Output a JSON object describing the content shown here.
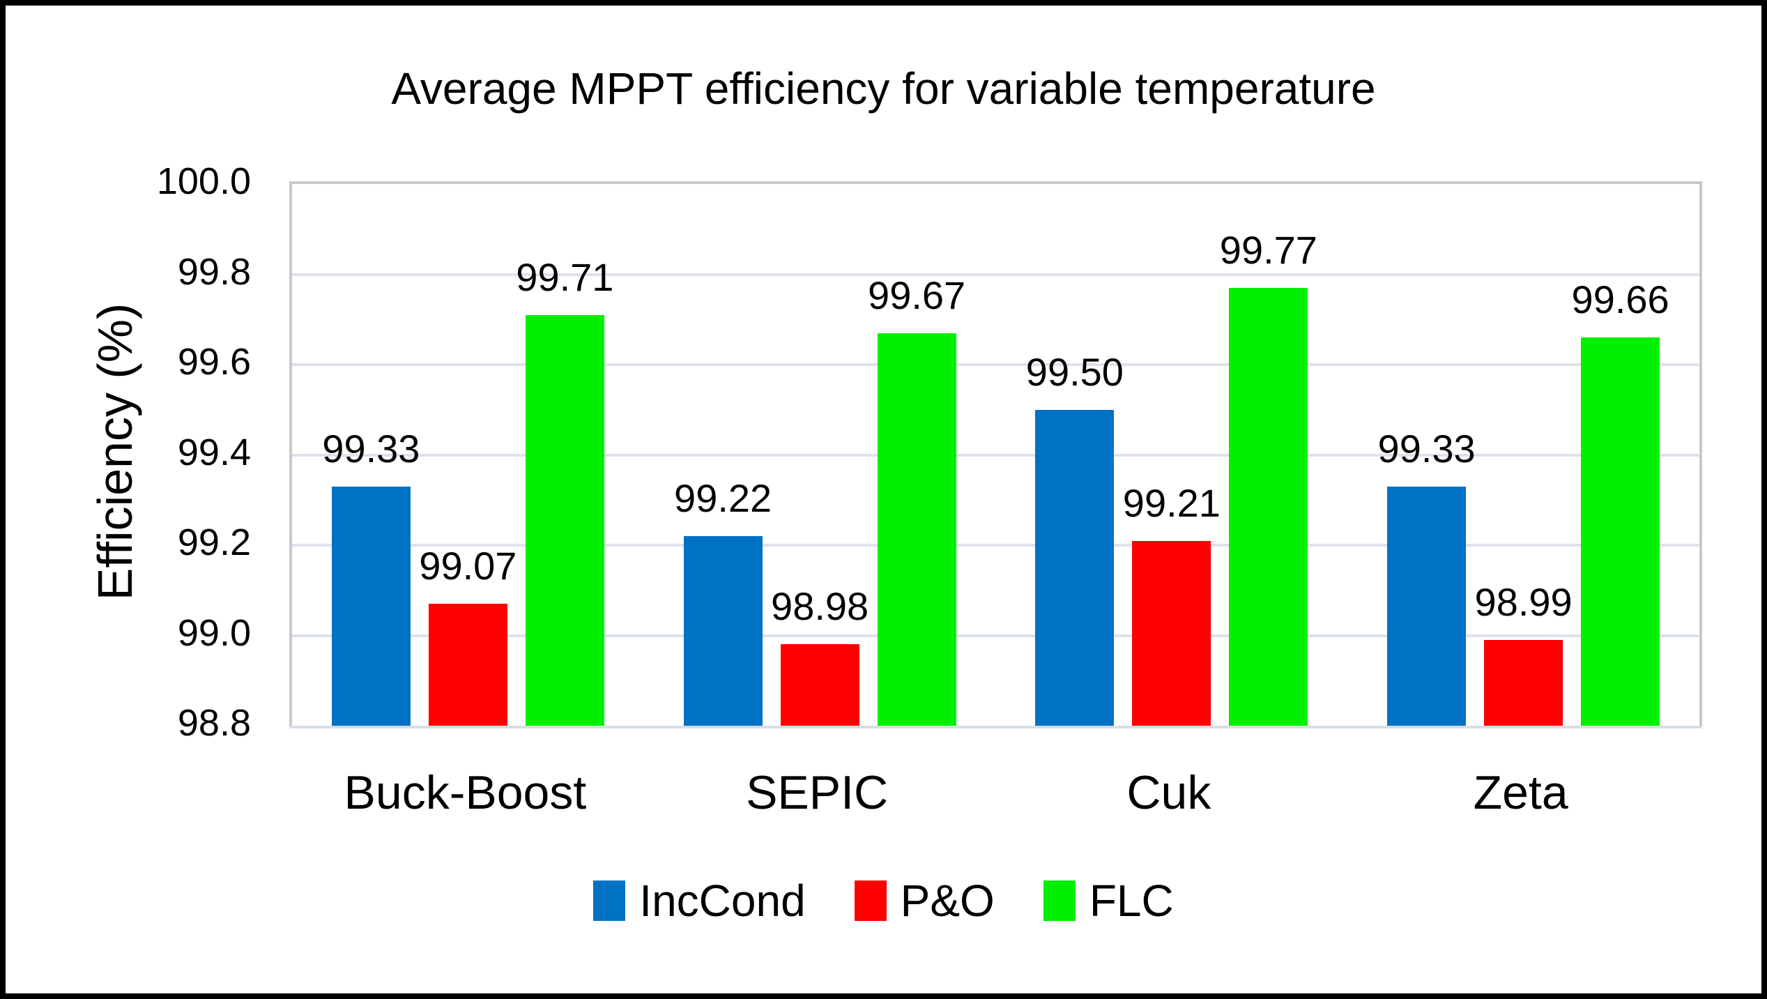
{
  "chart_data": {
    "type": "bar",
    "title": "Average MPPT efficiency for variable temperature",
    "ylabel": "Efficiency (%)",
    "xlabel": "",
    "categories": [
      "Buck-Boost",
      "SEPIC",
      "Cuk",
      "Zeta"
    ],
    "series": [
      {
        "name": "IncCond",
        "color": "#0072C6",
        "values": [
          99.33,
          99.22,
          99.5,
          99.33
        ]
      },
      {
        "name": "P&O",
        "color": "#FF0000",
        "values": [
          99.07,
          98.98,
          99.21,
          98.99
        ]
      },
      {
        "name": "FLC",
        "color": "#00F000",
        "values": [
          99.71,
          99.67,
          99.77,
          99.66
        ]
      }
    ],
    "ylim": [
      98.8,
      100.0
    ],
    "ytick_step": 0.2,
    "ytick_labels": [
      "100.0",
      "99.8",
      "99.6",
      "99.4",
      "99.2",
      "99.0",
      "98.8"
    ],
    "value_label_decimals": 2,
    "grid": "horizontal",
    "legend_position": "bottom",
    "colors": {
      "gridline": "#DDE2EB",
      "plot_border": "#C9C9C9",
      "axis_line": "#D7DDE6",
      "frame_border": "#000000",
      "background": "#FFFFFF",
      "text": "#000000"
    }
  }
}
